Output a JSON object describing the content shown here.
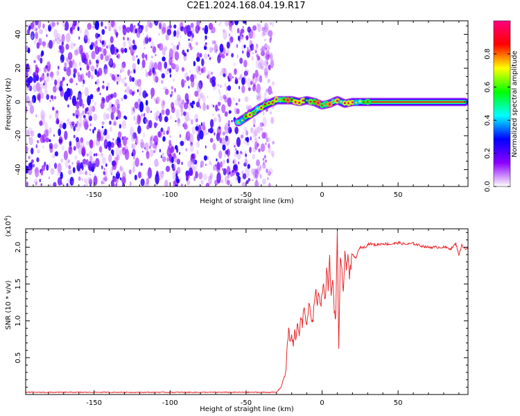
{
  "title": "C2E1.2024.168.04.19.R17",
  "chart_data": [
    {
      "type": "heatmap",
      "name": "spectrogram",
      "xlabel": "Height of straight line (km)",
      "ylabel": "Frequency (Hz)",
      "xlim": [
        -195,
        96
      ],
      "ylim": [
        -50,
        48
      ],
      "x_ticks": [
        -150,
        -100,
        -50,
        0,
        50
      ],
      "y_ticks": [
        -40,
        -20,
        0,
        20,
        40
      ],
      "noise_region_x": [
        -195,
        -40
      ],
      "signal_track": {
        "x": [
          -55,
          -50,
          -45,
          -40,
          -35,
          -30,
          -25,
          -20,
          -15,
          -10,
          -5,
          0,
          5,
          10,
          15,
          20,
          30,
          50,
          70,
          94
        ],
        "y": [
          -12,
          -9,
          -6,
          -3,
          -1,
          1,
          1,
          1,
          0,
          1,
          0,
          -2,
          -1,
          1,
          -1,
          0,
          0,
          0,
          0,
          0
        ]
      },
      "colorbar": {
        "label": "Normalized spectral amplitude",
        "range": [
          0,
          1
        ],
        "ticks": [
          0.0,
          0.2,
          0.4,
          0.6,
          0.8
        ],
        "tick_labels": [
          "0.0",
          "0.2",
          "0.4",
          "0.6",
          "0.8"
        ],
        "colormap": [
          "#ffffff",
          "#8b00ff",
          "#0000ff",
          "#00ffff",
          "#00ff00",
          "#ffff00",
          "#ff0000",
          "#ff007f"
        ]
      },
      "grid": false
    },
    {
      "type": "line",
      "name": "snr",
      "xlabel": "Height of straight line (km)",
      "ylabel": "SNR (10 * v/v)",
      "scale_label": "(x10",
      "scale_exponent": "4",
      "xlim": [
        -195,
        96
      ],
      "ylim": [
        0,
        2.25
      ],
      "x_ticks": [
        -150,
        -100,
        -50,
        0,
        50
      ],
      "y_ticks": [
        0.5,
        1.0,
        1.5,
        2.0
      ],
      "y_tick_labels": [
        "0.5",
        "1.0",
        "1.5",
        "2.0"
      ],
      "color": "#e8262a",
      "series": [
        {
          "x": [
            -195,
            -150,
            -100,
            -60,
            -40,
            -30,
            -27,
            -24,
            -22,
            -21,
            -20,
            -19,
            -18,
            -17,
            -16,
            -15,
            -14,
            -13,
            -12,
            -11,
            -10,
            -9,
            -8,
            -7,
            -6,
            -5,
            -4,
            -3,
            -2,
            -1,
            0,
            1,
            2,
            3,
            4,
            5,
            6,
            7,
            8,
            9,
            10,
            11,
            12,
            13,
            14,
            15,
            16,
            17,
            18,
            20,
            22,
            25,
            28,
            31,
            35,
            40,
            45,
            50,
            55,
            60,
            65,
            70,
            75,
            80,
            85,
            88,
            90,
            92,
            94,
            96
          ],
          "values": [
            0.03,
            0.03,
            0.03,
            0.03,
            0.03,
            0.03,
            0.1,
            0.3,
            0.9,
            0.7,
            0.8,
            0.65,
            0.85,
            0.75,
            1.0,
            0.8,
            1.1,
            0.9,
            1.2,
            1.0,
            1.0,
            1.15,
            1.25,
            0.95,
            1.0,
            1.3,
            1.4,
            1.25,
            1.4,
            1.2,
            1.35,
            1.5,
            1.25,
            1.7,
            1.45,
            1.85,
            1.3,
            1.6,
            1.15,
            1.0,
            2.25,
            0.6,
            1.8,
            1.7,
            1.4,
            1.9,
            1.7,
            1.95,
            1.6,
            1.9,
            1.85,
            2.0,
            2.0,
            2.05,
            2.03,
            2.05,
            2.04,
            2.06,
            2.04,
            2.05,
            2.02,
            2.0,
            2.0,
            2.0,
            1.98,
            2.05,
            1.9,
            2.03,
            1.98,
            1.98
          ]
        }
      ],
      "grid": false
    }
  ]
}
